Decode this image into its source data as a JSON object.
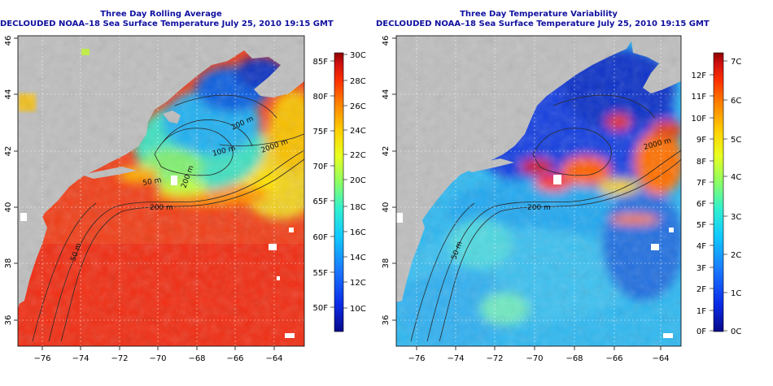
{
  "left_panel": {
    "title": "Three Day Rolling Average",
    "subtitle": "DECLOUDED NOAA–18 Sea Surface Temperature July 25, 2010 19:15 GMT",
    "x_ticks": [
      "−76",
      "−74",
      "−72",
      "−70",
      "−68",
      "−66",
      "−64"
    ],
    "y_ticks": [
      "36",
      "38",
      "40",
      "42",
      "44",
      "46"
    ],
    "contour_labels": [
      "200 m",
      "100 m",
      "2000 m",
      "200 m",
      "200 m",
      "50 m",
      "50 m"
    ],
    "colorbar": {
      "c_labels": [
        "30C",
        "28C",
        "26C",
        "24C",
        "22C",
        "20C",
        "18C",
        "16C",
        "14C",
        "12C",
        "10C"
      ],
      "f_labels": [
        "85F",
        "80F",
        "75F",
        "70F",
        "65F",
        "60F",
        "55F",
        "50F"
      ],
      "colors": [
        "#08088a",
        "#0a2ce8",
        "#1a78ff",
        "#10c8ff",
        "#30f0d0",
        "#90ff60",
        "#e8ff20",
        "#ffd000",
        "#ff8000",
        "#ff3000",
        "#d01010",
        "#900000"
      ]
    }
  },
  "right_panel": {
    "title": "Three Day Temperature Variability",
    "subtitle": "DECLOUDED NOAA–18 Sea Surface Temperature July 25, 2010 19:15 GMT",
    "x_ticks": [
      "−76",
      "−74",
      "−72",
      "−70",
      "−68",
      "−66",
      "−64"
    ],
    "y_ticks": [
      "36",
      "38",
      "40",
      "42",
      "44",
      "46"
    ],
    "contour_labels": [
      "2000 m",
      "200 m",
      "50 m"
    ],
    "colorbar": {
      "c_labels": [
        "7C",
        "6C",
        "5C",
        "4C",
        "3C",
        "2C",
        "1C",
        "0C"
      ],
      "f_labels": [
        "12F",
        "11F",
        "10F",
        "9F",
        "8F",
        "7F",
        "6F",
        "5F",
        "4F",
        "3F",
        "2F",
        "1F",
        "0F"
      ],
      "colors": [
        "#08088a",
        "#0a2ce8",
        "#1a78ff",
        "#10c8ff",
        "#30f0d0",
        "#90ff60",
        "#e8ff20",
        "#ffd000",
        "#ff8000",
        "#ff3000",
        "#d01010",
        "#900000"
      ]
    }
  }
}
